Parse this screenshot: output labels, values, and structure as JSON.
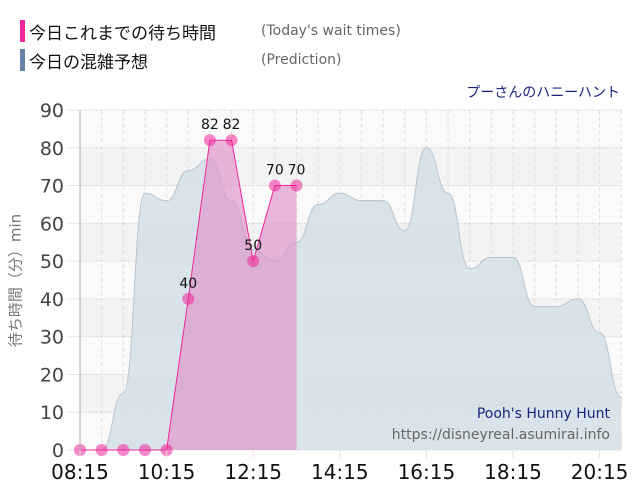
{
  "legend": [
    {
      "label": "今日これまでの待ち時間",
      "sub": "(Today's wait times)",
      "color": "#f0259a"
    },
    {
      "label": "今日の混雑予想",
      "sub": "(Prediction)",
      "color": "#6680a8"
    }
  ],
  "ride_title_ja": "プーさんのハニーハント",
  "watermark": {
    "title": "Pooh's Hunny Hunt",
    "url": "https://disneyreal.asumirai.info"
  },
  "colors": {
    "actual": "#f0259a",
    "actual_fill": "#e6a3d0",
    "prediction_fill": "#d5e0e8",
    "prediction_line": "#b7c6d2"
  },
  "chart_data": {
    "type": "area",
    "title": "プーさんのハニーハント",
    "xlabel": "",
    "ylabel": "待ち時間（分）min",
    "ylim": [
      0,
      90
    ],
    "yticks": [
      0,
      10,
      20,
      30,
      40,
      50,
      60,
      70,
      80,
      90
    ],
    "xticks": [
      "08:15",
      "10:15",
      "12:15",
      "14:15",
      "16:15",
      "18:15",
      "20:15"
    ],
    "grid": true,
    "legend_position": "top-left",
    "series": [
      {
        "name": "今日これまでの待ち時間 (Today's wait times)",
        "x": [
          "08:15",
          "08:45",
          "09:15",
          "09:45",
          "10:15",
          "10:45",
          "11:15",
          "11:45",
          "12:15",
          "12:45",
          "13:15"
        ],
        "values": [
          0,
          0,
          0,
          0,
          0,
          40,
          82,
          82,
          50,
          70,
          70
        ],
        "data_labels": [
          null,
          null,
          null,
          null,
          null,
          40,
          82,
          82,
          50,
          70,
          70
        ]
      },
      {
        "name": "今日の混雑予想 (Prediction)",
        "x": [
          "08:15",
          "08:45",
          "09:15",
          "09:45",
          "10:15",
          "10:45",
          "11:15",
          "11:45",
          "12:15",
          "12:45",
          "13:15",
          "13:45",
          "14:15",
          "14:45",
          "15:15",
          "15:45",
          "16:15",
          "16:45",
          "17:15",
          "17:45",
          "18:15",
          "18:45",
          "19:15",
          "19:45",
          "20:15",
          "20:45"
        ],
        "values": [
          0,
          0,
          15,
          68,
          66,
          74,
          77,
          66,
          53,
          50,
          55,
          65,
          68,
          66,
          66,
          58,
          80,
          68,
          48,
          51,
          51,
          38,
          38,
          40,
          31,
          14
        ]
      }
    ]
  }
}
